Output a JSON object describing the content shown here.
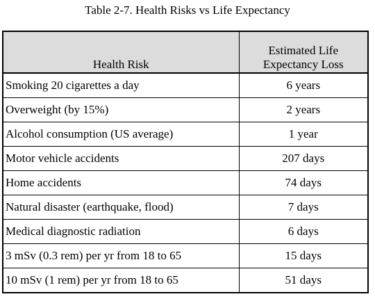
{
  "caption": "Table 2-7.  Health Risks vs Life Expectancy",
  "headers": {
    "risk": "Health Risk",
    "loss_line1": "Estimated Life",
    "loss_line2": "Expectancy Loss"
  },
  "rows": [
    {
      "risk": "Smoking 20 cigarettes a day",
      "loss": "6 years"
    },
    {
      "risk": "Overweight (by 15%)",
      "loss": "2 years"
    },
    {
      "risk": "Alcohol consumption (US average)",
      "loss": "1 year"
    },
    {
      "risk": "Motor vehicle accidents",
      "loss": "207 days"
    },
    {
      "risk": "Home accidents",
      "loss": "74 days"
    },
    {
      "risk": "Natural disaster (earthquake, flood)",
      "loss": "7 days"
    },
    {
      "risk": "Medical diagnostic radiation",
      "loss": "6 days"
    },
    {
      "risk": "3 mSv (0.3 rem) per yr from 18 to 65",
      "loss": "15 days"
    },
    {
      "risk": "10 mSv (1 rem) per yr from 18 to 65",
      "loss": "51 days"
    }
  ]
}
